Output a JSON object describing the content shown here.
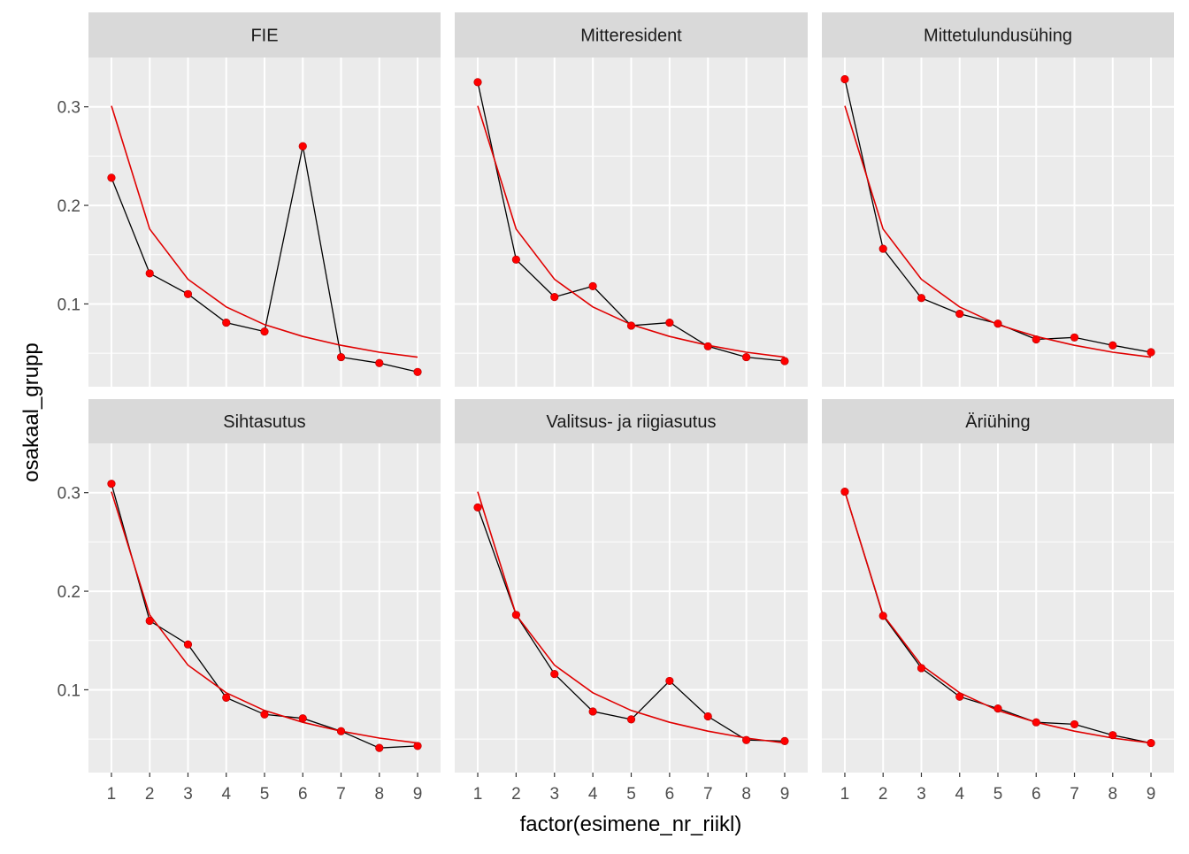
{
  "chart_data": {
    "type": "line",
    "facet_layout": "2 rows x 3 columns, shared axes",
    "xlabel": "factor(esimene_nr_riikl)",
    "ylabel": "osakaal_grupp",
    "x": [
      "1",
      "2",
      "3",
      "4",
      "5",
      "6",
      "7",
      "8",
      "9"
    ],
    "y_ticks": [
      "0.1",
      "0.2",
      "0.3"
    ],
    "ylim": [
      0.016,
      0.35
    ],
    "grid": true,
    "legend": "none",
    "colors": {
      "panel_bg": "#EBEBEB",
      "strip_bg": "#D9D9D9",
      "grid": "#FFFFFF",
      "observed": "#000000",
      "points": "#FF0000",
      "reference": "#E00000"
    },
    "reference_series": [
      0.301,
      0.176,
      0.125,
      0.097,
      0.079,
      0.067,
      0.058,
      0.051,
      0.046
    ],
    "facets": [
      {
        "title": "FIE",
        "values": [
          0.228,
          0.131,
          0.11,
          0.081,
          0.072,
          0.26,
          0.046,
          0.04,
          0.031
        ]
      },
      {
        "title": "Mitteresident",
        "values": [
          0.325,
          0.145,
          0.107,
          0.118,
          0.078,
          0.081,
          0.057,
          0.046,
          0.042
        ]
      },
      {
        "title": "Mittetulundusühing",
        "values": [
          0.328,
          0.156,
          0.106,
          0.09,
          0.08,
          0.064,
          0.066,
          0.058,
          0.051
        ]
      },
      {
        "title": "Sihtasutus",
        "values": [
          0.309,
          0.17,
          0.146,
          0.092,
          0.075,
          0.071,
          0.058,
          0.041,
          0.043
        ]
      },
      {
        "title": "Valitsus- ja riigiasutus",
        "values": [
          0.285,
          0.176,
          0.116,
          0.078,
          0.07,
          0.109,
          0.073,
          0.049,
          0.048
        ]
      },
      {
        "title": "Äriühing",
        "values": [
          0.301,
          0.175,
          0.122,
          0.093,
          0.081,
          0.067,
          0.065,
          0.054,
          0.046
        ]
      }
    ]
  }
}
